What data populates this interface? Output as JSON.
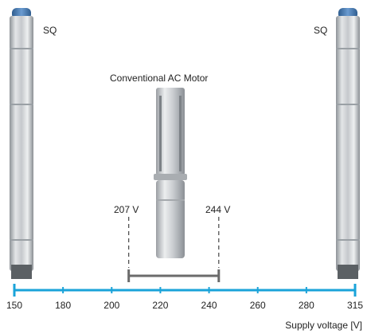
{
  "labels": {
    "sq_left": "SQ",
    "sq_right": "SQ",
    "conventional": "Conventional AC Motor",
    "v_low": "207 V",
    "v_high": "244 V"
  },
  "colors": {
    "axis": "#1aa3d9",
    "range_bar": "#6b6b6b",
    "dashed": "#444444",
    "pump_body": "#c9ccd0",
    "pump_cap": "#4a7fb5"
  },
  "icons": {
    "sq_pump": "sq-submersible-pump-image",
    "ac_motor": "conventional-ac-motor-pump-image"
  },
  "chart_data": {
    "type": "range",
    "xlabel": "Supply voltage [V]",
    "xlim": [
      150,
      315
    ],
    "ticks": [
      150,
      180,
      200,
      220,
      240,
      260,
      280,
      315
    ],
    "ranges": [
      {
        "name": "SQ",
        "from": 150,
        "to": 315
      },
      {
        "name": "Conventional AC Motor",
        "from": 207,
        "to": 244
      }
    ]
  }
}
